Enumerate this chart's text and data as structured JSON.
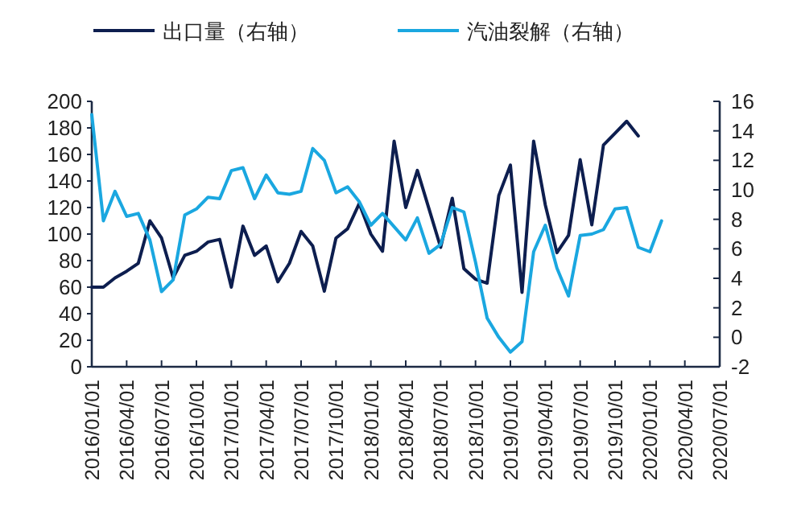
{
  "chart_data": {
    "type": "line",
    "legend": "top",
    "grid": false,
    "marker": "none",
    "line_style": "solid",
    "xlim": [
      "2016-01",
      "2020-07"
    ],
    "xticks": [
      {
        "value": "2016-01",
        "label": "2016/01/01"
      },
      {
        "value": "2016-04",
        "label": "2016/04/01"
      },
      {
        "value": "2016-07",
        "label": "2016/07/01"
      },
      {
        "value": "2016-10",
        "label": "2016/10/01"
      },
      {
        "value": "2017-01",
        "label": "2017/01/01"
      },
      {
        "value": "2017-04",
        "label": "2017/04/01"
      },
      {
        "value": "2017-07",
        "label": "2017/07/01"
      },
      {
        "value": "2017-10",
        "label": "2017/10/01"
      },
      {
        "value": "2018-01",
        "label": "2018/01/01"
      },
      {
        "value": "2018-04",
        "label": "2018/04/01"
      },
      {
        "value": "2018-07",
        "label": "2018/07/01"
      },
      {
        "value": "2018-10",
        "label": "2018/10/01"
      },
      {
        "value": "2019-01",
        "label": "2019/01/01"
      },
      {
        "value": "2019-04",
        "label": "2019/04/01"
      },
      {
        "value": "2019-07",
        "label": "2019/07/01"
      },
      {
        "value": "2019-10",
        "label": "2019/10/01"
      },
      {
        "value": "2020-01",
        "label": "2020/01/01"
      },
      {
        "value": "2020-04",
        "label": "2020/04/01"
      },
      {
        "value": "2020-07",
        "label": "2020/07/01"
      }
    ],
    "ylim": [
      0,
      200
    ],
    "yticks": [
      0,
      20,
      40,
      60,
      80,
      100,
      120,
      140,
      160,
      180,
      200
    ],
    "y2lim": [
      -2,
      16
    ],
    "y2ticks": [
      -2,
      0,
      2,
      4,
      6,
      8,
      10,
      12,
      14,
      16
    ],
    "x": [
      "2016-01",
      "2016-02",
      "2016-03",
      "2016-04",
      "2016-05",
      "2016-06",
      "2016-07",
      "2016-08",
      "2016-09",
      "2016-10",
      "2016-11",
      "2016-12",
      "2017-01",
      "2017-02",
      "2017-03",
      "2017-04",
      "2017-05",
      "2017-06",
      "2017-07",
      "2017-08",
      "2017-09",
      "2017-10",
      "2017-11",
      "2017-12",
      "2018-01",
      "2018-02",
      "2018-03",
      "2018-04",
      "2018-05",
      "2018-06",
      "2018-07",
      "2018-08",
      "2018-09",
      "2018-10",
      "2018-11",
      "2018-12",
      "2019-01",
      "2019-02",
      "2019-03",
      "2019-04",
      "2019-05",
      "2019-06",
      "2019-07",
      "2019-08",
      "2019-09",
      "2019-10",
      "2019-11",
      "2019-12",
      "2020-01",
      "2020-02"
    ],
    "series": [
      {
        "name": "出口量（右轴）",
        "color": "#0d1e4f",
        "values": [
          60,
          60,
          67,
          72,
          78,
          110,
          97,
          67,
          84,
          87,
          94,
          96,
          60,
          106,
          84,
          91,
          64,
          78,
          102,
          91,
          57,
          97,
          104,
          123,
          100,
          87,
          170,
          120,
          148,
          119,
          90,
          127,
          74,
          66,
          63,
          129,
          152,
          56,
          170,
          122,
          86,
          99,
          156,
          107,
          167,
          176,
          185,
          174,
          null,
          null
        ]
      },
      {
        "name": "汽油裂解（右轴）",
        "color": "#1aa7e0",
        "axis": "y2",
        "values": [
          15.1,
          7.9,
          9.9,
          8.2,
          8.4,
          6.6,
          3.1,
          3.9,
          8.3,
          8.7,
          9.5,
          9.4,
          11.3,
          11.5,
          9.4,
          11.0,
          9.8,
          9.7,
          9.9,
          12.8,
          12.0,
          9.8,
          10.2,
          9.2,
          7.6,
          8.4,
          7.5,
          6.6,
          8.1,
          5.7,
          6.3,
          8.8,
          8.5,
          5.1,
          1.3,
          0.0,
          -1.0,
          -0.3,
          5.8,
          7.6,
          4.7,
          2.8,
          6.9,
          7.0,
          7.3,
          8.7,
          8.8,
          6.1,
          5.8,
          7.9
        ]
      }
    ]
  }
}
